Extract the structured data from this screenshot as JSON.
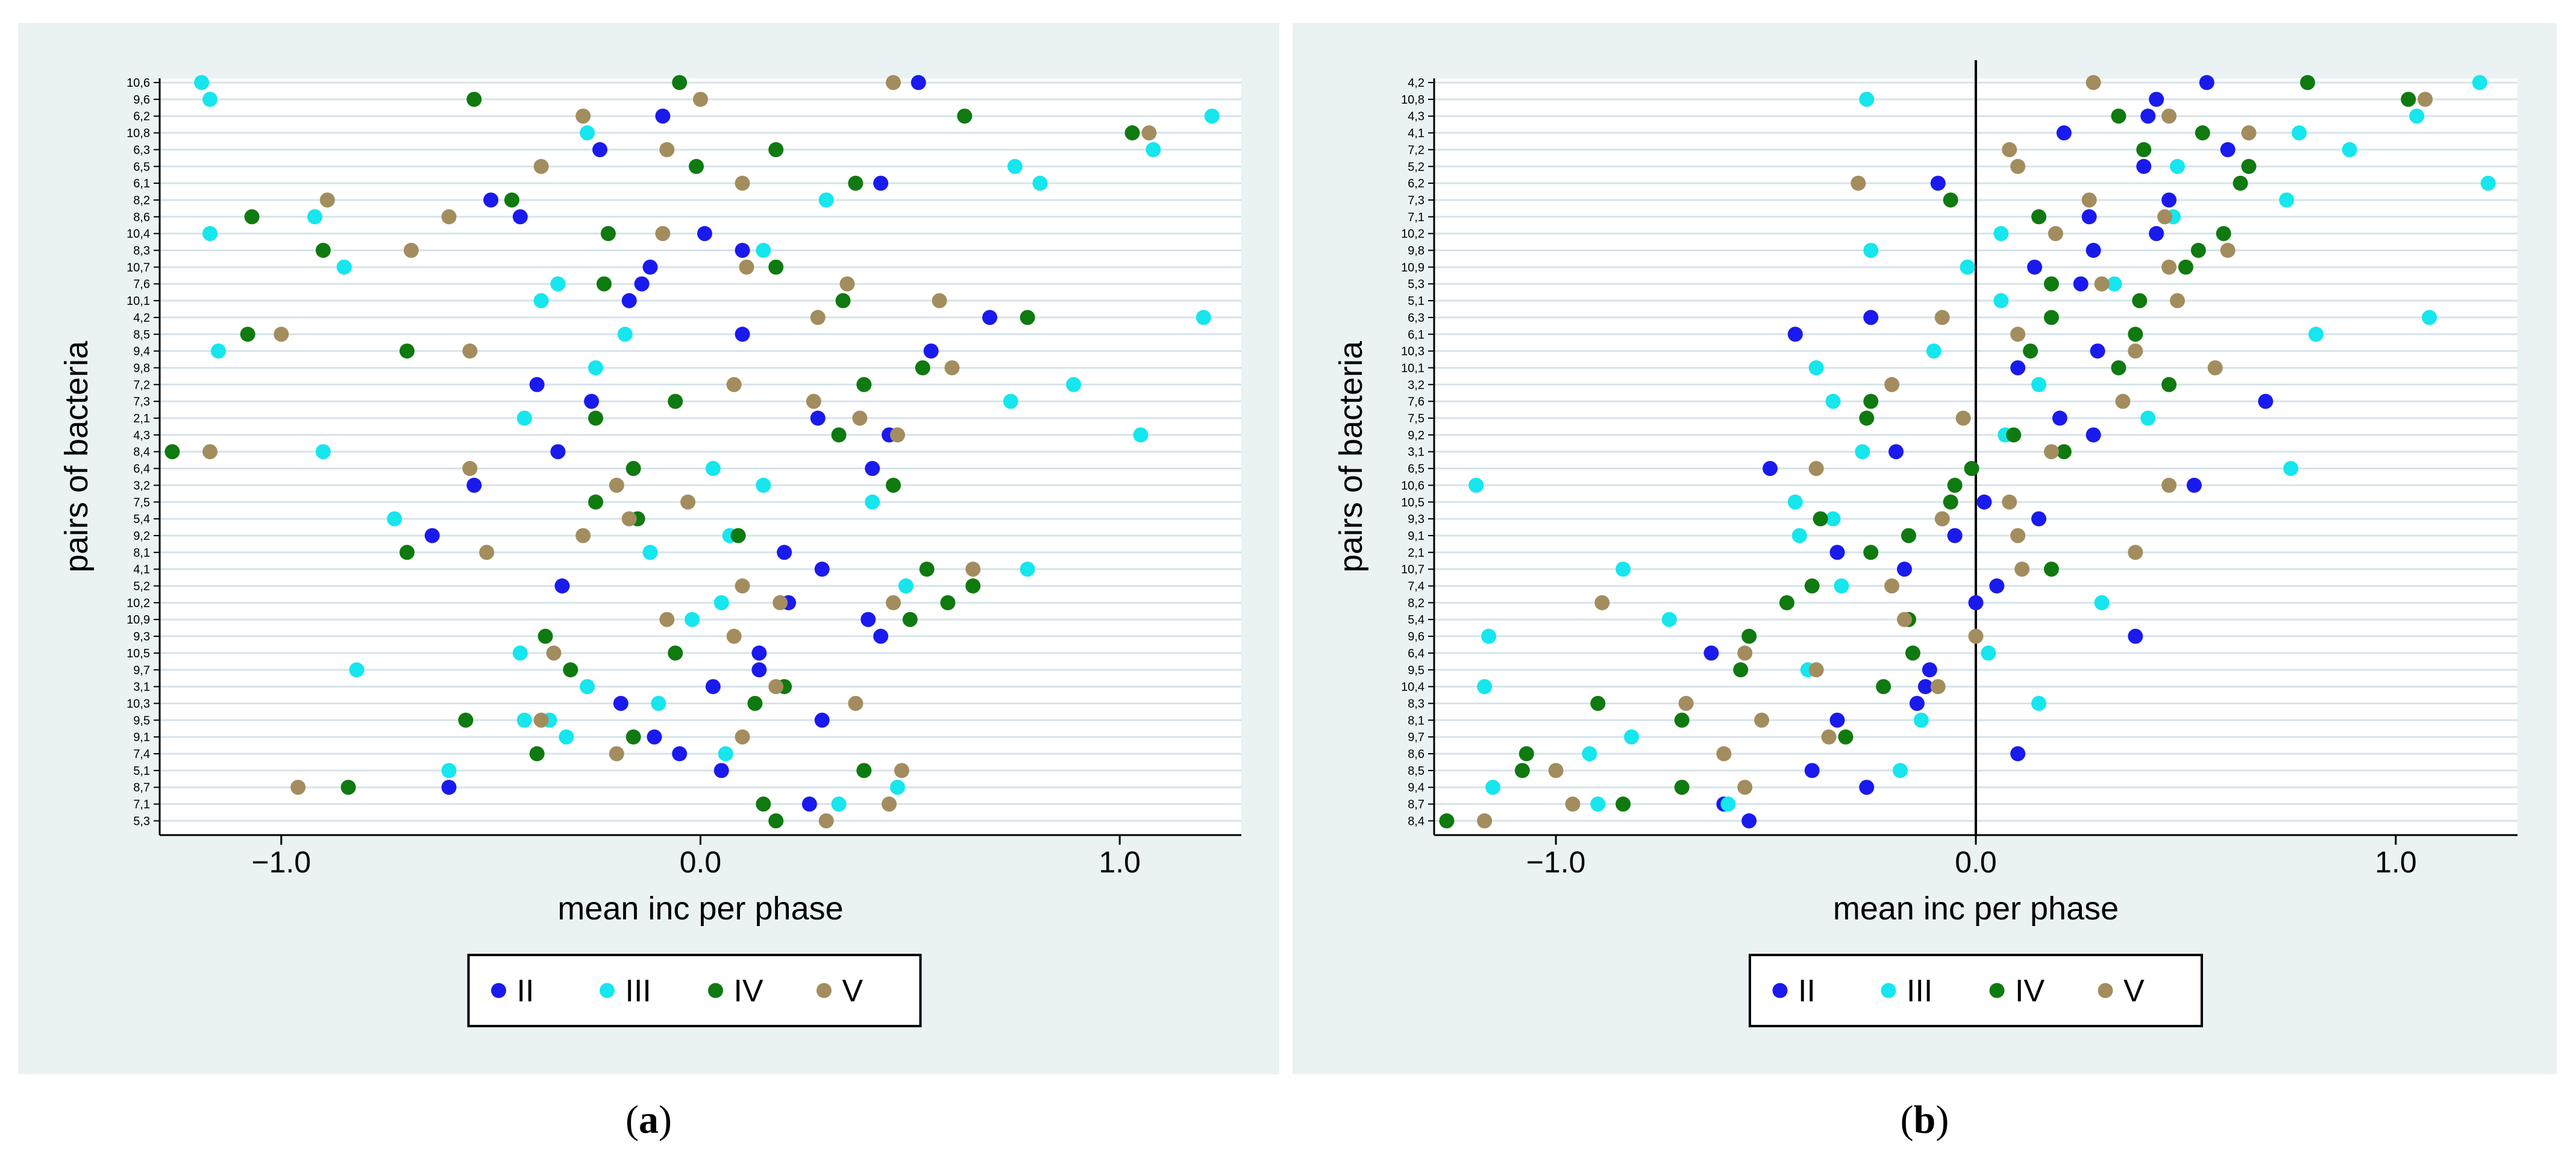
{
  "colors": {
    "II": "#1a1aee",
    "III": "#16e6ee",
    "IV": "#0f7a0f",
    "V": "#a38d5e",
    "panel_bg": "#eaf2f3",
    "plot_bg": "#ffffff",
    "grid": "#d6e3ea"
  },
  "legend": [
    "II",
    "III",
    "IV",
    "V"
  ],
  "panels": [
    {
      "label_prefix": "(",
      "label_letter": "a",
      "label_suffix": ")"
    },
    {
      "label_prefix": "(",
      "label_letter": "b",
      "label_suffix": ")"
    }
  ],
  "chart_data": [
    {
      "type": "scatter",
      "title": "",
      "xlabel": "mean inc per phase",
      "ylabel": "pairs of bacteria",
      "xlim": [
        -1.29,
        1.29
      ],
      "xticks": [
        -1.0,
        0.0,
        1.0
      ],
      "xtick_labels": [
        "−1.0",
        "0.0",
        "1.0"
      ],
      "categories": [
        "10,6",
        "9,6",
        "6,2",
        "10,8",
        "6,3",
        "6,5",
        "6,1",
        "8,2",
        "8,6",
        "10,4",
        "8,3",
        "10,7",
        "7,6",
        "10,1",
        "4,2",
        "8,5",
        "9,4",
        "9,8",
        "7,2",
        "7,3",
        "2,1",
        "4,3",
        "8,4",
        "6,4",
        "3,2",
        "7,5",
        "5,4",
        "9,2",
        "8,1",
        "4,1",
        "5,2",
        "10,2",
        "10,9",
        "9,3",
        "10,5",
        "9,7",
        "3,1",
        "10,3",
        "9,5",
        "9,1",
        "7,4",
        "5,1",
        "8,7",
        "7,1",
        "5,3"
      ],
      "grid": true,
      "legend_position": "bottom",
      "series": [
        {
          "name": "II",
          "values": [
            0.52,
            -0.09,
            -0.24,
            0.43,
            -0.5,
            -0.43,
            0.01,
            0.1,
            -0.12,
            -0.14,
            -0.17,
            0.69,
            0.1,
            0.55,
            -0.39,
            -0.26,
            0.28,
            0.45,
            -0.34,
            0.41,
            -0.54,
            -0.64,
            0.2,
            0.29,
            -0.33,
            0.21,
            0.4,
            0.43,
            0.14,
            0.14,
            0.03,
            -0.19,
            0.29,
            -0.11,
            -0.05,
            0.05,
            -0.6,
            0.26
          ],
          "rows": [
            0,
            2,
            4,
            6,
            7,
            8,
            9,
            10,
            11,
            12,
            13,
            14,
            15,
            16,
            18,
            19,
            20,
            21,
            22,
            23,
            24,
            27,
            28,
            29,
            30,
            31,
            32,
            33,
            34,
            35,
            36,
            37,
            38,
            39,
            40,
            41,
            42,
            43
          ]
        },
        {
          "name": "III",
          "values": [
            -1.19,
            -1.17,
            1.22,
            -0.27,
            1.08,
            0.75,
            0.81,
            0.3,
            -0.92,
            -1.17,
            0.15,
            -0.85,
            -0.34,
            -0.38,
            1.2,
            -0.18,
            -1.15,
            -0.25,
            0.89,
            0.74,
            -0.42,
            1.05,
            -0.9,
            0.03,
            0.15,
            0.41,
            -0.73,
            0.07,
            -0.12,
            0.78,
            0.49,
            0.05,
            -0.02,
            -0.43,
            -0.82,
            -0.27,
            -0.1,
            -0.42,
            -0.36,
            -0.32,
            0.06,
            -0.6,
            0.47,
            0.33
          ],
          "rows": [
            0,
            1,
            2,
            3,
            4,
            5,
            6,
            7,
            8,
            9,
            10,
            11,
            12,
            13,
            14,
            15,
            16,
            17,
            18,
            19,
            20,
            21,
            22,
            23,
            24,
            25,
            26,
            27,
            28,
            29,
            30,
            31,
            32,
            34,
            35,
            36,
            37,
            38,
            38,
            39,
            40,
            41,
            42,
            43
          ]
        },
        {
          "name": "IV",
          "values": [
            -0.05,
            -0.54,
            0.63,
            1.03,
            0.18,
            -0.01,
            0.37,
            -0.45,
            -1.07,
            -0.22,
            -0.9,
            0.18,
            -0.23,
            0.34,
            0.78,
            -1.08,
            -0.7,
            0.53,
            0.39,
            -0.06,
            -0.25,
            0.33,
            -1.26,
            -0.16,
            0.46,
            -0.25,
            -0.15,
            0.09,
            -0.7,
            0.54,
            0.65,
            0.59,
            0.5,
            -0.37,
            -0.06,
            -0.31,
            0.2,
            0.13,
            -0.56,
            -0.16,
            -0.39,
            0.39,
            -0.84,
            0.15,
            0.18
          ],
          "rows": [
            0,
            1,
            2,
            3,
            4,
            5,
            6,
            7,
            8,
            9,
            10,
            11,
            12,
            13,
            14,
            15,
            16,
            17,
            18,
            19,
            20,
            21,
            22,
            23,
            24,
            25,
            26,
            27,
            28,
            29,
            30,
            31,
            32,
            33,
            34,
            35,
            36,
            37,
            38,
            39,
            40,
            41,
            42,
            43,
            44
          ]
        },
        {
          "name": "V",
          "values": [
            0.46,
            0.0,
            -0.28,
            1.07,
            -0.08,
            -0.38,
            0.1,
            -0.89,
            -0.6,
            -0.09,
            -0.69,
            0.11,
            0.35,
            0.57,
            0.28,
            -1.0,
            -0.55,
            0.6,
            0.08,
            0.27,
            0.38,
            0.47,
            -1.17,
            -0.55,
            -0.2,
            -0.03,
            -0.17,
            -0.28,
            -0.51,
            0.65,
            0.1,
            0.19,
            0.46,
            -0.08,
            0.08,
            -0.35,
            0.18,
            0.37,
            -0.38,
            0.1,
            -0.2,
            0.48,
            -0.96,
            0.45,
            0.3
          ],
          "rows": [
            0,
            1,
            2,
            3,
            4,
            5,
            6,
            7,
            8,
            9,
            10,
            11,
            12,
            13,
            14,
            15,
            16,
            17,
            18,
            19,
            20,
            21,
            22,
            23,
            24,
            25,
            26,
            27,
            28,
            29,
            30,
            31,
            31,
            32,
            33,
            34,
            36,
            37,
            38,
            39,
            40,
            41,
            42,
            43,
            44
          ]
        }
      ]
    },
    {
      "type": "scatter",
      "title": "",
      "xlabel": "mean inc per phase",
      "ylabel": "pairs of bacteria",
      "xlim": [
        -1.29,
        1.29
      ],
      "xticks": [
        -1.0,
        0.0,
        1.0
      ],
      "xtick_labels": [
        "−1.0",
        "0.0",
        "1.0"
      ],
      "vline_at": 0,
      "categories": [
        "4,2",
        "10,8",
        "4,3",
        "4,1",
        "7,2",
        "5,2",
        "6,2",
        "7,3",
        "7,1",
        "10,2",
        "9,8",
        "10,9",
        "5,3",
        "5,1",
        "6,3",
        "6,1",
        "10,3",
        "10,1",
        "3,2",
        "7,6",
        "7,5",
        "9,2",
        "3,1",
        "6,5",
        "10,6",
        "10,5",
        "9,3",
        "9,1",
        "2,1",
        "10,7",
        "7,4",
        "8,2",
        "5,4",
        "9,6",
        "6,4",
        "9,5",
        "10,4",
        "8,3",
        "8,1",
        "9,7",
        "8,6",
        "8,5",
        "9,4",
        "8,7",
        "8,4"
      ],
      "grid": true,
      "legend_position": "bottom",
      "series": [
        {
          "name": "II",
          "values": [
            0.55,
            0.43,
            0.41,
            0.21,
            0.6,
            0.4,
            -0.09,
            0.46,
            0.27,
            0.43,
            0.28,
            0.14,
            0.25,
            -0.25,
            -0.43,
            0.29,
            0.1,
            0.69,
            0.2,
            0.28,
            -0.19,
            -0.49,
            0.52,
            0.02,
            0.15,
            -0.05,
            -0.33,
            -0.17,
            0.05,
            0.0,
            0.38,
            -0.63,
            -0.11,
            -0.12,
            -0.14,
            -0.33,
            0.1,
            -0.39,
            -0.26,
            -0.6,
            -0.54
          ],
          "rows": [
            0,
            1,
            2,
            3,
            4,
            5,
            6,
            7,
            8,
            9,
            10,
            11,
            12,
            14,
            15,
            16,
            17,
            19,
            20,
            21,
            22,
            23,
            24,
            25,
            26,
            27,
            28,
            29,
            30,
            31,
            33,
            34,
            35,
            36,
            37,
            38,
            40,
            41,
            42,
            43,
            44
          ]
        },
        {
          "name": "III",
          "values": [
            1.2,
            -0.26,
            1.05,
            0.77,
            0.89,
            0.48,
            1.22,
            0.74,
            0.47,
            0.06,
            -0.25,
            -0.02,
            0.33,
            0.06,
            1.08,
            0.81,
            -0.1,
            -0.38,
            0.15,
            -0.34,
            0.41,
            0.07,
            -0.27,
            0.75,
            -1.19,
            -0.43,
            -0.34,
            -0.42,
            -0.84,
            -0.32,
            0.3,
            -0.73,
            -1.16,
            0.03,
            -0.4,
            -1.17,
            0.15,
            -0.13,
            -0.82,
            -0.92,
            -0.18,
            -1.15,
            -0.9,
            -0.59
          ],
          "rows": [
            0,
            1,
            2,
            3,
            4,
            5,
            6,
            7,
            8,
            9,
            10,
            11,
            12,
            13,
            14,
            15,
            16,
            17,
            18,
            19,
            20,
            21,
            22,
            23,
            24,
            25,
            26,
            27,
            29,
            30,
            31,
            32,
            33,
            34,
            35,
            36,
            37,
            38,
            39,
            40,
            41,
            42,
            43,
            43
          ]
        },
        {
          "name": "IV",
          "values": [
            0.79,
            1.03,
            0.34,
            0.54,
            0.4,
            0.65,
            0.63,
            -0.06,
            0.15,
            0.59,
            0.53,
            0.5,
            0.18,
            0.39,
            0.18,
            0.38,
            0.13,
            0.34,
            0.46,
            -0.25,
            -0.26,
            0.09,
            0.21,
            -0.01,
            -0.05,
            -0.06,
            -0.37,
            -0.16,
            -0.25,
            0.18,
            -0.39,
            -0.45,
            -0.16,
            -0.54,
            -0.15,
            -0.56,
            -0.22,
            -0.9,
            -0.7,
            -0.31,
            -1.07,
            -1.08,
            -0.7,
            -0.84,
            -1.26
          ],
          "rows": [
            0,
            1,
            2,
            3,
            4,
            5,
            6,
            7,
            8,
            9,
            10,
            11,
            12,
            13,
            14,
            15,
            16,
            17,
            18,
            19,
            20,
            21,
            22,
            23,
            24,
            25,
            26,
            27,
            28,
            29,
            30,
            31,
            32,
            33,
            34,
            35,
            36,
            37,
            38,
            39,
            40,
            41,
            42,
            43,
            44
          ]
        },
        {
          "name": "V",
          "values": [
            0.28,
            1.07,
            0.46,
            0.65,
            0.08,
            0.1,
            -0.28,
            0.27,
            0.45,
            0.19,
            0.6,
            0.46,
            0.3,
            0.48,
            -0.08,
            0.1,
            0.38,
            0.57,
            -0.2,
            0.35,
            -0.03,
            0.18,
            -0.38,
            0.46,
            0.08,
            -0.08,
            0.1,
            0.38,
            0.11,
            -0.2,
            -0.89,
            -0.17,
            0.0,
            -0.55,
            -0.38,
            -0.09,
            -0.69,
            -0.51,
            -0.35,
            -0.6,
            -1.0,
            -0.55,
            -0.96,
            -1.17
          ],
          "rows": [
            0,
            1,
            2,
            3,
            4,
            5,
            6,
            7,
            8,
            9,
            10,
            11,
            12,
            13,
            14,
            15,
            16,
            17,
            18,
            19,
            20,
            22,
            23,
            24,
            25,
            26,
            27,
            28,
            29,
            30,
            31,
            32,
            33,
            34,
            35,
            36,
            37,
            38,
            39,
            40,
            41,
            42,
            43,
            44
          ]
        }
      ]
    }
  ]
}
